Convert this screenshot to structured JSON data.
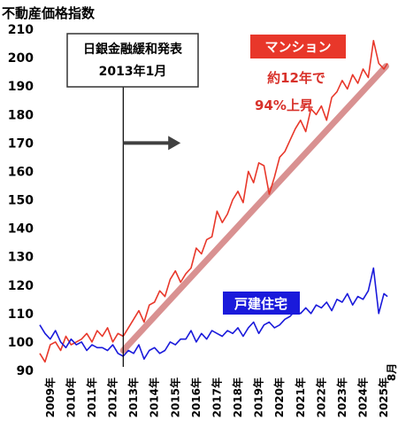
{
  "chart_data": {
    "type": "line",
    "title": "不動産価格指数",
    "ylim": [
      90,
      210
    ],
    "yticks": [
      90,
      100,
      110,
      120,
      130,
      140,
      150,
      160,
      170,
      180,
      190,
      200,
      210
    ],
    "xlim": [
      2009.0,
      2025.75
    ],
    "xticks": [
      "2009年",
      "2010年",
      "2011年",
      "2012年",
      "2013年",
      "2014年",
      "2015年",
      "2016年",
      "2017年",
      "2018年",
      "2019年",
      "2020年",
      "2021年",
      "2022年",
      "2023年",
      "2024年",
      "2025年"
    ],
    "x_end_label": "8月",
    "grid": false,
    "series": [
      {
        "name": "マンション",
        "color": "#e8372a",
        "label_bg": "#e8372a",
        "x": [
          2009.0,
          2009.25,
          2009.5,
          2009.75,
          2010.0,
          2010.25,
          2010.5,
          2010.75,
          2011.0,
          2011.25,
          2011.5,
          2011.75,
          2012.0,
          2012.25,
          2012.5,
          2012.75,
          2013.0,
          2013.25,
          2013.5,
          2013.75,
          2014.0,
          2014.25,
          2014.5,
          2014.75,
          2015.0,
          2015.25,
          2015.5,
          2015.75,
          2016.0,
          2016.25,
          2016.5,
          2016.75,
          2017.0,
          2017.25,
          2017.5,
          2017.75,
          2018.0,
          2018.25,
          2018.5,
          2018.75,
          2019.0,
          2019.25,
          2019.5,
          2019.75,
          2020.0,
          2020.25,
          2020.5,
          2020.75,
          2021.0,
          2021.25,
          2021.5,
          2021.75,
          2022.0,
          2022.25,
          2022.5,
          2022.75,
          2023.0,
          2023.25,
          2023.5,
          2023.75,
          2024.0,
          2024.25,
          2024.5,
          2024.75,
          2025.0,
          2025.25,
          2025.5,
          2025.67
        ],
        "values": [
          96,
          93,
          99,
          100,
          97,
          102,
          99,
          100,
          101,
          103,
          100,
          104,
          102,
          105,
          100,
          103,
          102,
          105,
          108,
          111,
          107,
          113,
          114,
          118,
          116,
          122,
          125,
          121,
          124,
          126,
          133,
          131,
          136,
          137,
          146,
          142,
          145,
          150,
          153,
          149,
          160,
          156,
          163,
          162,
          152,
          158,
          165,
          167,
          171,
          175,
          178,
          174,
          182,
          180,
          183,
          178,
          186,
          188,
          192,
          189,
          194,
          191,
          196,
          193,
          206,
          198,
          196,
          198
        ]
      },
      {
        "name": "戸建住宅",
        "color": "#1a1adb",
        "label_bg": "#1a1adb",
        "x": [
          2009.0,
          2009.25,
          2009.5,
          2009.75,
          2010.0,
          2010.25,
          2010.5,
          2010.75,
          2011.0,
          2011.25,
          2011.5,
          2011.75,
          2012.0,
          2012.25,
          2012.5,
          2012.75,
          2013.0,
          2013.25,
          2013.5,
          2013.75,
          2014.0,
          2014.25,
          2014.5,
          2014.75,
          2015.0,
          2015.25,
          2015.5,
          2015.75,
          2016.0,
          2016.25,
          2016.5,
          2016.75,
          2017.0,
          2017.25,
          2017.5,
          2017.75,
          2018.0,
          2018.25,
          2018.5,
          2018.75,
          2019.0,
          2019.25,
          2019.5,
          2019.75,
          2020.0,
          2020.25,
          2020.5,
          2020.75,
          2021.0,
          2021.25,
          2021.5,
          2021.75,
          2022.0,
          2022.25,
          2022.5,
          2022.75,
          2023.0,
          2023.25,
          2023.5,
          2023.75,
          2024.0,
          2024.25,
          2024.5,
          2024.75,
          2025.0,
          2025.25,
          2025.5,
          2025.67
        ],
        "values": [
          106,
          103,
          101,
          104,
          100,
          98,
          101,
          99,
          100,
          97,
          99,
          98,
          98,
          97,
          99,
          96,
          95,
          97,
          96,
          99,
          94,
          97,
          98,
          96,
          97,
          100,
          99,
          101,
          101,
          104,
          100,
          103,
          101,
          104,
          103,
          102,
          104,
          103,
          105,
          102,
          105,
          107,
          103,
          106,
          107,
          105,
          106,
          108,
          109,
          111,
          110,
          112,
          110,
          113,
          112,
          114,
          111,
          115,
          114,
          117,
          113,
          116,
          115,
          118,
          126,
          110,
          117,
          116
        ]
      }
    ],
    "trend_line": {
      "color": "#d99191",
      "x": [
        2013.0,
        2025.6
      ],
      "values": [
        97,
        197
      ]
    },
    "annotations": {
      "event_title": "日銀金融緩和発表",
      "event_date": "2013年1月",
      "event_x": 2013.0,
      "arrow_to_x": 2015.75,
      "arrow_y": 170,
      "arrow_color": "#404040",
      "condo_note_line1": "約12年で",
      "condo_note_line2": "94%上昇",
      "note_color": "#d8312a"
    }
  }
}
